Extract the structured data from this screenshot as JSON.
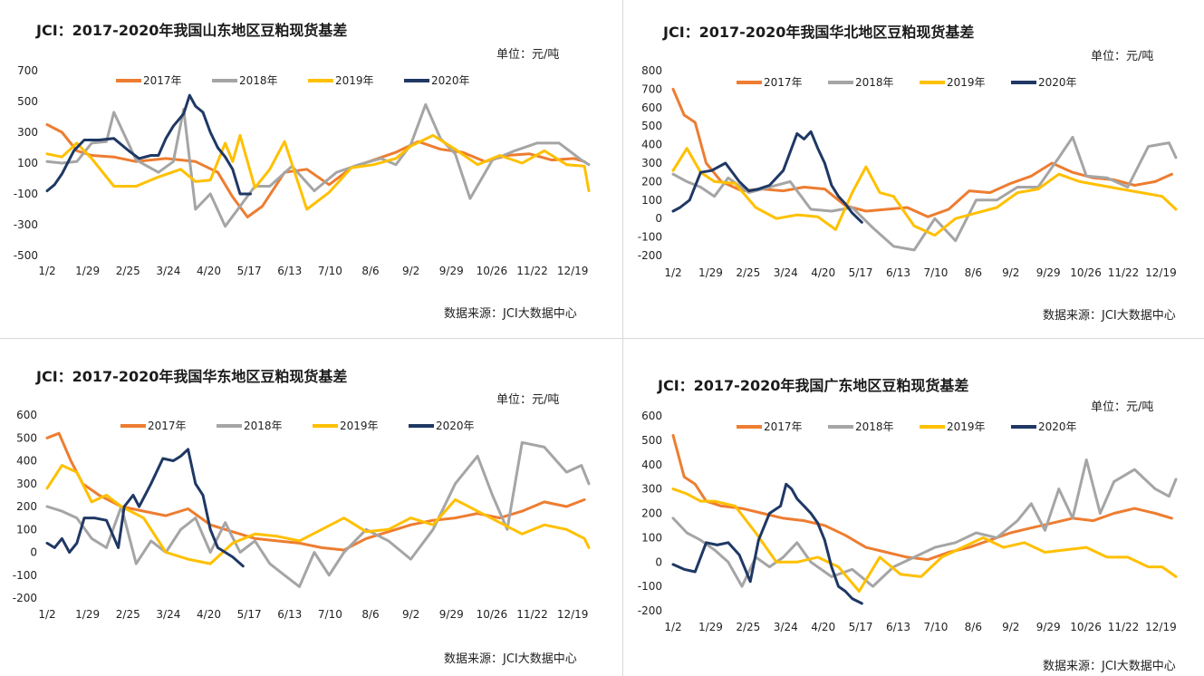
{
  "panels": [
    {
      "title": "JCI：2017-2020年我国山东地区豆粕现货基差",
      "unit": "单位：元/吨",
      "source": "数据来源：JCI大数据中心"
    },
    {
      "title": "JCI：2017-2020年我国华北地区豆粕现货基差",
      "unit": "单位：元/吨",
      "source": "数据来源：JCI大数据中心"
    },
    {
      "title": "JCI：2017-2020年我国华东地区豆粕现货基差",
      "unit": "单位：元/吨",
      "source": "数据来源：JCI大数据中心"
    },
    {
      "title": "JCI：2017-2020年我国广东地区豆粕现货基差",
      "unit": "单位：元/吨",
      "source": "数据来源：JCI大数据中心"
    }
  ],
  "colors": {
    "2017年": "#ed7d31",
    "2018年": "#a5a5a5",
    "2019年": "#ffc000",
    "2020年": "#1f3864"
  },
  "chart_data": [
    {
      "type": "line",
      "title": "JCI：2017-2020年我国山东地区豆粕现货基差",
      "ylim": [
        -500,
        700
      ],
      "yticks": [
        -500,
        -300,
        -100,
        100,
        300,
        500,
        700
      ],
      "xticks": [
        "1/2",
        "1/29",
        "2/25",
        "3/24",
        "4/20",
        "5/17",
        "6/13",
        "7/10",
        "8/6",
        "9/2",
        "9/29",
        "10/26",
        "11/22",
        "12/19"
      ],
      "xlim": [
        0,
        365
      ],
      "legend_position": "top",
      "series": [
        {
          "name": "2017年",
          "x": [
            0,
            10,
            20,
            30,
            45,
            60,
            80,
            100,
            115,
            125,
            135,
            145,
            160,
            175,
            190,
            205,
            220,
            235,
            250,
            265,
            280,
            295,
            310,
            325,
            340,
            355,
            362
          ],
          "y": [
            350,
            300,
            180,
            150,
            140,
            110,
            130,
            110,
            40,
            -120,
            -250,
            -180,
            40,
            60,
            -40,
            70,
            120,
            170,
            240,
            190,
            170,
            110,
            150,
            160,
            120,
            130,
            110
          ]
        },
        {
          "name": "2018年",
          "x": [
            0,
            10,
            20,
            30,
            40,
            45,
            60,
            75,
            85,
            92,
            100,
            110,
            120,
            130,
            140,
            150,
            165,
            180,
            195,
            210,
            225,
            235,
            245,
            255,
            265,
            275,
            285,
            300,
            315,
            330,
            345,
            360,
            365
          ],
          "y": [
            110,
            100,
            110,
            230,
            240,
            430,
            120,
            40,
            110,
            450,
            -200,
            -100,
            -310,
            -180,
            -50,
            -50,
            80,
            -80,
            40,
            90,
            130,
            90,
            220,
            480,
            260,
            160,
            -130,
            120,
            180,
            230,
            230,
            120,
            90
          ]
        },
        {
          "name": "2019年",
          "x": [
            0,
            10,
            20,
            30,
            45,
            60,
            75,
            90,
            100,
            110,
            120,
            125,
            130,
            140,
            150,
            160,
            175,
            190,
            205,
            220,
            235,
            245,
            260,
            275,
            290,
            305,
            320,
            335,
            350,
            362,
            365
          ],
          "y": [
            160,
            140,
            230,
            130,
            -50,
            -50,
            10,
            60,
            -20,
            -10,
            230,
            110,
            280,
            -60,
            60,
            240,
            -200,
            -90,
            70,
            90,
            130,
            210,
            280,
            190,
            90,
            150,
            100,
            180,
            90,
            80,
            -80
          ]
        },
        {
          "name": "2020年",
          "x": [
            0,
            5,
            10,
            18,
            25,
            35,
            45,
            55,
            62,
            70,
            75,
            80,
            85,
            92,
            96,
            100,
            105,
            110,
            115,
            120,
            125,
            130,
            137
          ],
          "y": [
            -80,
            -40,
            30,
            180,
            250,
            250,
            260,
            180,
            130,
            150,
            150,
            260,
            340,
            420,
            540,
            470,
            430,
            300,
            200,
            140,
            60,
            -100,
            -100
          ]
        }
      ]
    },
    {
      "type": "line",
      "title": "JCI：2017-2020年我国华北地区豆粕现货基差",
      "ylim": [
        -200,
        800
      ],
      "yticks": [
        -200,
        -100,
        0,
        100,
        200,
        300,
        400,
        500,
        600,
        700,
        800
      ],
      "xticks": [
        "1/2",
        "1/29",
        "2/25",
        "3/24",
        "4/20",
        "5/17",
        "6/13",
        "7/10",
        "8/6",
        "9/2",
        "9/29",
        "10/26",
        "11/22",
        "12/19"
      ],
      "xlim": [
        0,
        365
      ],
      "legend_position": "top",
      "series": [
        {
          "name": "2017年",
          "x": [
            0,
            8,
            16,
            24,
            35,
            50,
            65,
            80,
            95,
            110,
            125,
            140,
            155,
            170,
            185,
            200,
            215,
            230,
            245,
            260,
            275,
            290,
            305,
            320,
            335,
            350,
            362
          ],
          "y": [
            700,
            560,
            520,
            300,
            200,
            150,
            160,
            150,
            170,
            160,
            70,
            40,
            50,
            60,
            10,
            50,
            150,
            140,
            190,
            230,
            300,
            250,
            220,
            210,
            180,
            200,
            240
          ]
        },
        {
          "name": "2018年",
          "x": [
            0,
            10,
            20,
            30,
            40,
            55,
            70,
            85,
            100,
            115,
            130,
            145,
            160,
            175,
            190,
            205,
            220,
            235,
            250,
            265,
            280,
            290,
            300,
            315,
            330,
            345,
            360,
            365
          ],
          "y": [
            240,
            200,
            170,
            120,
            220,
            140,
            170,
            200,
            50,
            40,
            60,
            -50,
            -150,
            -170,
            0,
            -120,
            100,
            100,
            170,
            170,
            330,
            440,
            230,
            220,
            170,
            390,
            410,
            330
          ]
        },
        {
          "name": "2019年",
          "x": [
            0,
            10,
            20,
            30,
            45,
            60,
            75,
            90,
            105,
            118,
            130,
            140,
            150,
            160,
            175,
            190,
            205,
            220,
            235,
            250,
            265,
            280,
            295,
            310,
            325,
            340,
            355,
            365
          ],
          "y": [
            260,
            380,
            250,
            200,
            190,
            60,
            0,
            20,
            10,
            -60,
            140,
            280,
            140,
            120,
            -40,
            -90,
            0,
            30,
            60,
            140,
            160,
            240,
            200,
            180,
            160,
            140,
            120,
            50
          ]
        },
        {
          "name": "2020年",
          "x": [
            0,
            5,
            12,
            20,
            28,
            38,
            48,
            55,
            62,
            70,
            80,
            85,
            90,
            95,
            100,
            105,
            110,
            115,
            120,
            125,
            130,
            137
          ],
          "y": [
            40,
            60,
            100,
            250,
            260,
            300,
            200,
            150,
            160,
            180,
            260,
            360,
            460,
            430,
            470,
            380,
            300,
            180,
            120,
            80,
            30,
            -20
          ]
        }
      ]
    },
    {
      "type": "line",
      "title": "JCI：2017-2020年我国华东地区豆粕现货基差",
      "ylim": [
        -200,
        600
      ],
      "yticks": [
        -200,
        -100,
        0,
        100,
        200,
        300,
        400,
        500,
        600
      ],
      "xticks": [
        "1/2",
        "1/29",
        "2/25",
        "3/24",
        "4/20",
        "5/17",
        "6/13",
        "7/10",
        "8/6",
        "9/2",
        "9/29",
        "10/26",
        "11/22",
        "12/19"
      ],
      "xlim": [
        0,
        365
      ],
      "legend_position": "top",
      "series": [
        {
          "name": "2017年",
          "x": [
            0,
            8,
            16,
            24,
            35,
            50,
            65,
            80,
            95,
            110,
            125,
            140,
            155,
            170,
            185,
            200,
            215,
            230,
            245,
            260,
            275,
            290,
            305,
            320,
            335,
            350,
            362
          ],
          "y": [
            500,
            520,
            400,
            300,
            250,
            200,
            180,
            160,
            190,
            120,
            90,
            60,
            50,
            40,
            20,
            10,
            60,
            90,
            120,
            140,
            150,
            170,
            150,
            180,
            220,
            200,
            230
          ]
        },
        {
          "name": "2018年",
          "x": [
            0,
            10,
            20,
            30,
            40,
            50,
            60,
            70,
            80,
            90,
            100,
            110,
            120,
            130,
            140,
            150,
            160,
            170,
            180,
            190,
            200,
            215,
            230,
            245,
            260,
            275,
            290,
            300,
            310,
            320,
            335,
            350,
            360,
            365
          ],
          "y": [
            200,
            180,
            150,
            60,
            20,
            200,
            -50,
            50,
            0,
            100,
            150,
            0,
            130,
            0,
            50,
            -50,
            -100,
            -150,
            0,
            -100,
            0,
            100,
            50,
            -30,
            100,
            300,
            420,
            250,
            100,
            480,
            460,
            350,
            380,
            300
          ]
        },
        {
          "name": "2019年",
          "x": [
            0,
            10,
            20,
            30,
            40,
            50,
            65,
            80,
            95,
            110,
            125,
            140,
            155,
            170,
            185,
            200,
            215,
            230,
            245,
            260,
            275,
            290,
            305,
            320,
            335,
            350,
            362,
            365
          ],
          "y": [
            280,
            380,
            350,
            220,
            250,
            200,
            150,
            0,
            -30,
            -50,
            40,
            80,
            70,
            50,
            100,
            150,
            90,
            100,
            150,
            120,
            230,
            180,
            130,
            80,
            120,
            100,
            60,
            20
          ]
        },
        {
          "name": "2020年",
          "x": [
            0,
            5,
            10,
            15,
            20,
            25,
            32,
            40,
            48,
            52,
            58,
            62,
            70,
            78,
            85,
            90,
            95,
            100,
            105,
            110,
            115,
            120,
            125,
            132
          ],
          "y": [
            40,
            20,
            60,
            0,
            40,
            150,
            150,
            140,
            20,
            200,
            250,
            200,
            300,
            410,
            400,
            420,
            450,
            300,
            250,
            100,
            20,
            0,
            -20,
            -60
          ]
        }
      ]
    },
    {
      "type": "line",
      "title": "JCI：2017-2020年我国广东地区豆粕现货基差",
      "ylim": [
        -200,
        600
      ],
      "yticks": [
        -200,
        -100,
        0,
        100,
        200,
        300,
        400,
        500,
        600
      ],
      "xticks": [
        "1/2",
        "1/29",
        "2/25",
        "3/24",
        "4/20",
        "5/17",
        "6/13",
        "7/10",
        "8/6",
        "9/2",
        "9/29",
        "10/26",
        "11/22",
        "12/19"
      ],
      "xlim": [
        0,
        365
      ],
      "legend_position": "top",
      "series": [
        {
          "name": "2017年",
          "x": [
            0,
            8,
            16,
            24,
            35,
            50,
            65,
            80,
            95,
            110,
            125,
            140,
            155,
            170,
            185,
            200,
            215,
            230,
            245,
            260,
            275,
            290,
            305,
            320,
            335,
            350,
            362
          ],
          "y": [
            520,
            350,
            320,
            250,
            230,
            220,
            200,
            180,
            170,
            150,
            110,
            60,
            40,
            20,
            10,
            40,
            60,
            90,
            120,
            140,
            160,
            180,
            170,
            200,
            220,
            200,
            180
          ]
        },
        {
          "name": "2018年",
          "x": [
            0,
            10,
            20,
            30,
            40,
            50,
            60,
            70,
            80,
            90,
            100,
            115,
            130,
            145,
            160,
            175,
            190,
            205,
            220,
            235,
            250,
            260,
            270,
            280,
            290,
            300,
            310,
            320,
            335,
            350,
            360,
            365
          ],
          "y": [
            180,
            120,
            90,
            50,
            0,
            -100,
            20,
            -20,
            20,
            80,
            0,
            -60,
            -30,
            -100,
            -20,
            20,
            60,
            80,
            120,
            100,
            170,
            240,
            130,
            300,
            180,
            420,
            200,
            330,
            380,
            300,
            270,
            340
          ]
        },
        {
          "name": "2019年",
          "x": [
            0,
            10,
            20,
            30,
            45,
            60,
            75,
            90,
            105,
            120,
            135,
            150,
            165,
            180,
            195,
            210,
            225,
            240,
            255,
            270,
            285,
            300,
            315,
            330,
            345,
            355,
            365
          ],
          "y": [
            300,
            280,
            250,
            250,
            230,
            120,
            0,
            0,
            20,
            -20,
            -120,
            20,
            -50,
            -60,
            20,
            60,
            100,
            60,
            80,
            40,
            50,
            60,
            20,
            20,
            -20,
            -20,
            -60
          ]
        },
        {
          "name": "2020年",
          "x": [
            0,
            8,
            16,
            24,
            32,
            40,
            48,
            56,
            62,
            70,
            78,
            82,
            86,
            90,
            95,
            100,
            105,
            110,
            115,
            120,
            125,
            130,
            137
          ],
          "y": [
            -10,
            -30,
            -40,
            80,
            70,
            80,
            30,
            -80,
            90,
            200,
            230,
            320,
            300,
            260,
            230,
            200,
            160,
            90,
            -20,
            -100,
            -120,
            -150,
            -170
          ]
        }
      ]
    }
  ]
}
